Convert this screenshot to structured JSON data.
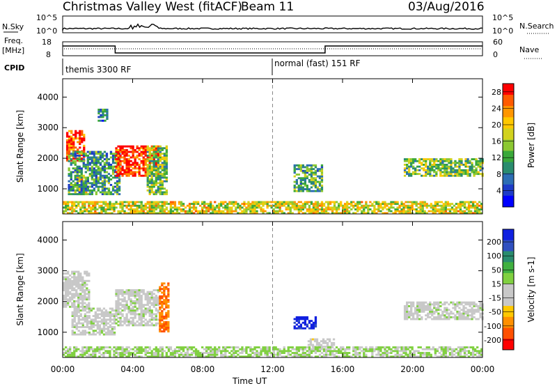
{
  "header": {
    "station": "Christmas Valley West (fitACF)",
    "beam": "Beam 11",
    "date": "03/Aug/2016"
  },
  "top_panels": {
    "nsky_label": "N.Sky",
    "nsearch_label": "N.Search",
    "nsky_left_ticks": [
      "10^5",
      "10^0"
    ],
    "nsky_right_ticks": [
      "10^5",
      "10^0"
    ],
    "freq_label": "Freq.",
    "freq_units": "[MHz]",
    "freq_ticks": [
      "18",
      "8"
    ],
    "nave_label": "Nave",
    "nave_ticks": [
      "60",
      "0"
    ],
    "cpid_label": "CPID",
    "cpid_segments": [
      "themis 3300 RF",
      "normal (fast) 151 RF"
    ]
  },
  "chart_data": [
    {
      "type": "heatmap",
      "panel": "power",
      "ylabel": "Slant Range [km]",
      "yticks": [
        "1000",
        "2000",
        "3000",
        "4000"
      ],
      "ylim": [
        180,
        4600
      ],
      "xlim": [
        0,
        24
      ],
      "xticks": [
        "00:00",
        "04:00",
        "08:00",
        "12:00",
        "16:00",
        "20:00",
        "00:00"
      ],
      "colorbar": {
        "label": "Power [dB]",
        "ticks": [
          "4",
          "8",
          "12",
          "16",
          "20",
          "24",
          "28"
        ],
        "range": [
          0,
          30
        ],
        "colors": [
          "#0000ff",
          "#1e3cc8",
          "#2d6eb4",
          "#2a8c6e",
          "#3aa83a",
          "#8cc832",
          "#d2d21e",
          "#ffc800",
          "#ff9600",
          "#ff5a00",
          "#ff0000"
        ]
      },
      "echo_regions": [
        {
          "t": [
            0.2,
            1.2
          ],
          "range": [
            1900,
            2900
          ],
          "value": 26
        },
        {
          "t": [
            0.8,
            1.4
          ],
          "range": [
            800,
            1400
          ],
          "value": 18
        },
        {
          "t": [
            0.3,
            3.2
          ],
          "range": [
            800,
            2200
          ],
          "value": 10
        },
        {
          "t": [
            2.0,
            2.5
          ],
          "range": [
            3200,
            3600
          ],
          "value": 8
        },
        {
          "t": [
            3.0,
            5.5
          ],
          "range": [
            1400,
            2400
          ],
          "value": 28
        },
        {
          "t": [
            4.8,
            6.0
          ],
          "range": [
            800,
            2400
          ],
          "value": 14
        },
        {
          "t": [
            13.2,
            14.8
          ],
          "range": [
            900,
            1800
          ],
          "value": 12
        },
        {
          "t": [
            19.5,
            24.0
          ],
          "range": [
            1400,
            2000
          ],
          "value": 14
        },
        {
          "t": [
            0.0,
            24.0
          ],
          "range": [
            180,
            600
          ],
          "value": 18
        }
      ],
      "reference_line_time": 12
    },
    {
      "type": "heatmap",
      "panel": "velocity",
      "ylabel": "Slant Range [km]",
      "xlabel": "Time UT",
      "yticks": [
        "1000",
        "2000",
        "3000",
        "4000"
      ],
      "ylim": [
        180,
        4600
      ],
      "xlim": [
        0,
        24
      ],
      "xticks": [
        "00:00",
        "04:00",
        "08:00",
        "12:00",
        "16:00",
        "20:00",
        "00:00"
      ],
      "colorbar": {
        "label": "Velocity [m s-1]",
        "ticks": [
          "200",
          "100",
          "50",
          "15",
          "-15",
          "-50",
          "-100",
          "-200"
        ],
        "range": [
          -250,
          250
        ],
        "colors": [
          "#ff0000",
          "#ff5000",
          "#ff9000",
          "#ffc800",
          "#c8c8c8",
          "#c8c8c8",
          "#80d040",
          "#40b040",
          "#2a8c6e",
          "#3050c0",
          "#1020e0"
        ]
      },
      "echo_regions": [
        {
          "t": [
            0.0,
            1.5
          ],
          "range": [
            1800,
            3000
          ],
          "vel": 0
        },
        {
          "t": [
            0.5,
            3.0
          ],
          "range": [
            900,
            1800
          ],
          "vel": 0
        },
        {
          "t": [
            3.0,
            5.5
          ],
          "range": [
            1200,
            2400
          ],
          "vel": 0
        },
        {
          "t": [
            5.5,
            6.0
          ],
          "range": [
            1000,
            2600
          ],
          "vel": -150
        },
        {
          "t": [
            13.2,
            14.5
          ],
          "range": [
            1100,
            1500
          ],
          "vel": 230
        },
        {
          "t": [
            14.0,
            15.5
          ],
          "range": [
            500,
            800
          ],
          "vel": -40
        },
        {
          "t": [
            19.5,
            24.0
          ],
          "range": [
            1400,
            2000
          ],
          "vel": 0
        },
        {
          "t": [
            0.0,
            12.0
          ],
          "range": [
            180,
            500
          ],
          "vel": 30
        },
        {
          "t": [
            12.0,
            24.0
          ],
          "range": [
            180,
            500
          ],
          "vel": 25
        }
      ],
      "reference_line_time": 12
    }
  ],
  "freq_trace": {
    "t": [
      0,
      3,
      3,
      15,
      15,
      24
    ],
    "mhz": [
      15,
      15,
      10,
      10,
      15,
      15
    ]
  }
}
